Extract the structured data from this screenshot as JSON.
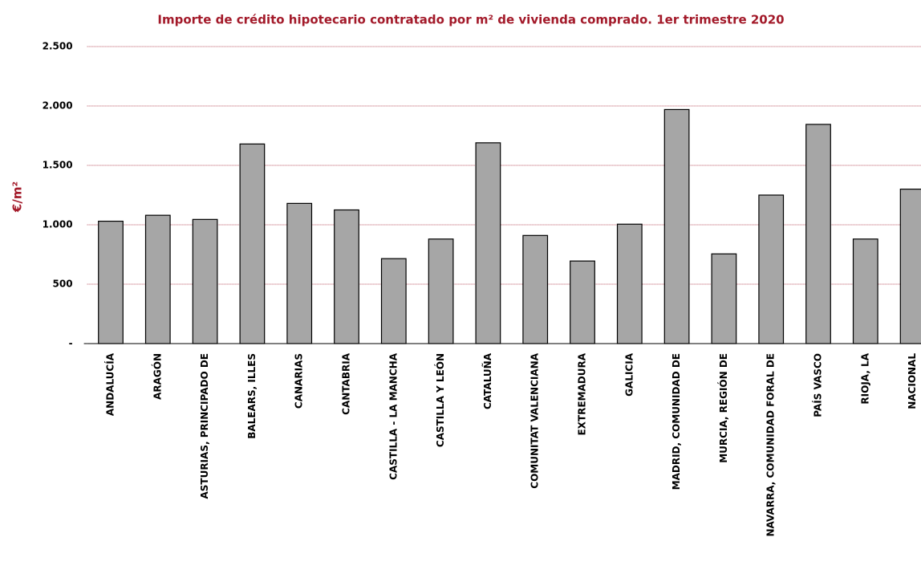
{
  "chart_data": {
    "type": "bar",
    "title": "Importe de crédito hipotecario contratado por m² de vivienda comprado. 1er trimestre 2020",
    "y_label": "€/m²",
    "categories": [
      "ANDALUCÍA",
      "ARAGÓN",
      "ASTURIAS, PRINCIPADO DE",
      "BALEARS, ILLES",
      "CANARIAS",
      "CANTABRIA",
      "CASTILLA - LA MANCHA",
      "CASTILLA Y LEÓN",
      "CATALUÑA",
      "COMUNITAT VALENCIANA",
      "EXTREMADURA",
      "GALICIA",
      "MADRID, COMUNIDAD DE",
      "MURCIA, REGIÓN DE",
      "NAVARRA, COMUNIDAD FORAL DE",
      "PAÍS VASCO",
      "RIOJA, LA",
      "NACIONAL"
    ],
    "values": [
      1030,
      1080,
      1045,
      1680,
      1180,
      1125,
      715,
      880,
      1690,
      910,
      695,
      1005,
      1970,
      755,
      1250,
      1845,
      880,
      1300
    ],
    "color": "#a6a6a6",
    "ylim": [
      0,
      2500
    ],
    "yticks": [
      {
        "value": 0,
        "label": "-"
      },
      500,
      {
        "value": 1000,
        "label": "1.000"
      },
      {
        "value": 1500,
        "label": "1.500"
      },
      {
        "value": 2000,
        "label": "2.000"
      },
      {
        "value": 2500,
        "label": "2.500"
      }
    ],
    "grid": true,
    "grid_color": "#a31a2a"
  }
}
